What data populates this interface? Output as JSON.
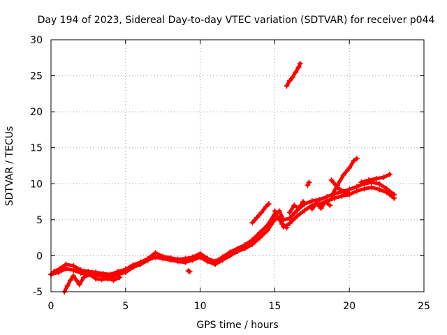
{
  "chart_data": {
    "type": "scatter",
    "title": "Day 194 of 2023, Sidereal Day-to-day VTEC variation (SDTVAR) for receiver p044",
    "xlabel": "GPS time / hours",
    "ylabel": "SDTVAR / TECUs",
    "xlim": [
      0,
      25
    ],
    "ylim": [
      -5,
      30
    ],
    "xticks": [
      "0",
      "5",
      "10",
      "15",
      "20",
      "25"
    ],
    "yticks": [
      "-5",
      "0",
      "5",
      "10",
      "15",
      "20",
      "25",
      "30"
    ],
    "grid": true,
    "marker": "+",
    "colors": {
      "series": "#ff0000",
      "grid": "#a0a0a0",
      "axis": "#000000"
    },
    "segments": [
      {
        "points": [
          [
            0,
            -2.6
          ],
          [
            0.5,
            -2.3
          ],
          [
            1.0,
            -1.8
          ],
          [
            1.5,
            -2.0
          ],
          [
            2.0,
            -2.4
          ],
          [
            2.5,
            -2.6
          ],
          [
            3.0,
            -2.7
          ],
          [
            3.5,
            -2.8
          ],
          [
            4.0,
            -3.0
          ],
          [
            4.5,
            -2.6
          ],
          [
            5.0,
            -2.3
          ],
          [
            5.5,
            -1.6
          ],
          [
            6.0,
            -1.2
          ],
          [
            6.5,
            -0.6
          ],
          [
            7.0,
            -0.2
          ],
          [
            7.5,
            -0.4
          ],
          [
            8.0,
            -0.6
          ],
          [
            8.5,
            -0.8
          ],
          [
            9.0,
            -0.9
          ],
          [
            9.5,
            -0.6
          ],
          [
            10.0,
            -0.2
          ],
          [
            10.5,
            -0.8
          ],
          [
            11.0,
            -1.2
          ],
          [
            11.5,
            -0.6
          ],
          [
            12.0,
            0.0
          ],
          [
            12.5,
            0.6
          ],
          [
            13.0,
            1.0
          ],
          [
            13.5,
            1.6
          ],
          [
            14.0,
            2.5
          ],
          [
            14.5,
            3.5
          ],
          [
            15.0,
            5.0
          ],
          [
            15.3,
            5.2
          ],
          [
            15.6,
            4.0
          ],
          [
            16.0,
            4.5
          ],
          [
            16.5,
            5.5
          ],
          [
            17.0,
            6.3
          ],
          [
            17.5,
            7.0
          ],
          [
            18.0,
            7.2
          ],
          [
            18.5,
            7.6
          ],
          [
            19.0,
            8.0
          ],
          [
            19.5,
            8.3
          ],
          [
            20.0,
            8.5
          ],
          [
            20.5,
            9.0
          ],
          [
            21.0,
            9.3
          ],
          [
            21.5,
            9.5
          ],
          [
            22.0,
            9.2
          ],
          [
            22.5,
            8.8
          ],
          [
            23.0,
            8.0
          ]
        ]
      },
      {
        "points": [
          [
            0.2,
            -2.2
          ],
          [
            0.6,
            -1.8
          ],
          [
            1.0,
            -1.2
          ],
          [
            1.5,
            -1.4
          ],
          [
            2.0,
            -2.0
          ],
          [
            2.5,
            -2.2
          ],
          [
            3.0,
            -2.3
          ],
          [
            3.5,
            -2.5
          ],
          [
            4.0,
            -2.6
          ],
          [
            4.5,
            -2.2
          ],
          [
            5.0,
            -1.9
          ],
          [
            5.5,
            -1.3
          ],
          [
            6.0,
            -0.9
          ],
          [
            6.5,
            -0.4
          ],
          [
            7.0,
            0.4
          ],
          [
            7.5,
            -0.1
          ],
          [
            8.0,
            -0.3
          ],
          [
            8.5,
            -0.5
          ],
          [
            9.0,
            -0.4
          ],
          [
            9.5,
            -0.2
          ],
          [
            10.0,
            0.3
          ],
          [
            10.5,
            -0.4
          ],
          [
            11.0,
            -0.8
          ],
          [
            11.5,
            -0.2
          ],
          [
            12.0,
            0.5
          ],
          [
            12.5,
            1.0
          ],
          [
            13.0,
            1.5
          ],
          [
            13.5,
            2.2
          ],
          [
            14.0,
            3.2
          ],
          [
            14.5,
            4.2
          ],
          [
            15.0,
            5.8
          ],
          [
            15.3,
            6.2
          ],
          [
            15.6,
            5.0
          ],
          [
            16.0,
            5.2
          ],
          [
            16.5,
            6.3
          ],
          [
            17.0,
            7.2
          ],
          [
            17.5,
            7.6
          ],
          [
            18.0,
            7.8
          ],
          [
            18.5,
            8.2
          ],
          [
            19.0,
            8.6
          ],
          [
            19.5,
            8.9
          ],
          [
            20.0,
            9.2
          ],
          [
            20.5,
            9.6
          ],
          [
            21.0,
            10.0
          ],
          [
            21.5,
            10.2
          ],
          [
            22.0,
            10.0
          ],
          [
            22.5,
            9.3
          ],
          [
            23.0,
            8.5
          ]
        ]
      },
      {
        "points": [
          [
            0.9,
            -5.0
          ],
          [
            1.1,
            -4.2
          ],
          [
            1.3,
            -3.4
          ],
          [
            1.5,
            -2.8
          ],
          [
            1.7,
            -3.4
          ],
          [
            1.9,
            -4.0
          ],
          [
            2.2,
            -3.0
          ],
          [
            2.6,
            -2.6
          ],
          [
            3.0,
            -3.2
          ],
          [
            3.4,
            -3.3
          ],
          [
            3.8,
            -3.2
          ],
          [
            4.2,
            -3.4
          ],
          [
            4.6,
            -3.0
          ]
        ]
      },
      {
        "points": [
          [
            13.5,
            4.6
          ],
          [
            13.8,
            5.3
          ],
          [
            14.1,
            6.0
          ],
          [
            14.4,
            6.8
          ],
          [
            14.6,
            7.2
          ]
        ]
      },
      {
        "points": [
          [
            15.0,
            6.2
          ],
          [
            15.2,
            5.4
          ],
          [
            15.5,
            4.4
          ],
          [
            15.8,
            3.9
          ]
        ]
      },
      {
        "points": [
          [
            18.8,
            8.3
          ],
          [
            19.2,
            9.8
          ],
          [
            19.6,
            11.2
          ],
          [
            20.0,
            12.2
          ],
          [
            20.3,
            13.2
          ],
          [
            20.5,
            13.5
          ]
        ]
      },
      {
        "points": [
          [
            18.8,
            10.5
          ],
          [
            19.2,
            9.5
          ],
          [
            19.6,
            8.9
          ],
          [
            20.0,
            8.6
          ]
        ]
      },
      {
        "points": [
          [
            20.8,
            10.2
          ],
          [
            21.3,
            10.5
          ],
          [
            21.8,
            10.7
          ],
          [
            22.3,
            10.9
          ],
          [
            22.7,
            11.3
          ]
        ]
      },
      {
        "points": [
          [
            17.5,
            6.5
          ],
          [
            17.8,
            7.3
          ],
          [
            18.1,
            6.6
          ],
          [
            18.4,
            7.5
          ],
          [
            18.7,
            7.0
          ]
        ]
      },
      {
        "points": [
          [
            16.0,
            6.0
          ],
          [
            16.3,
            7.0
          ],
          [
            16.6,
            6.6
          ],
          [
            16.9,
            7.5
          ]
        ]
      },
      {
        "points": [
          [
            15.8,
            23.6
          ],
          [
            16.0,
            24.3
          ],
          [
            16.2,
            24.8
          ],
          [
            16.4,
            25.5
          ],
          [
            16.6,
            26.2
          ],
          [
            16.7,
            26.7
          ]
        ]
      },
      {
        "points": [
          [
            17.2,
            9.8
          ],
          [
            17.3,
            10.2
          ]
        ]
      },
      {
        "points": [
          [
            9.2,
            -2.1
          ],
          [
            9.3,
            -2.2
          ]
        ]
      }
    ]
  }
}
